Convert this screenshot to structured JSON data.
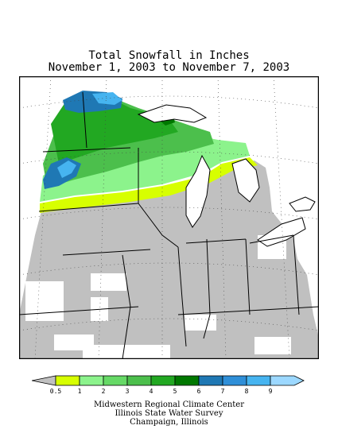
{
  "header": {
    "title": "Total Snowfall in Inches",
    "subtitle": "November 1, 2003 to November 7, 2003"
  },
  "legend": {
    "items": [
      {
        "label": "0.5",
        "color": "#d7ff00"
      },
      {
        "label": "1",
        "color": "#8cf38c"
      },
      {
        "label": "2",
        "color": "#66d966"
      },
      {
        "label": "3",
        "color": "#4cbf4c"
      },
      {
        "label": "4",
        "color": "#22a822"
      },
      {
        "label": "5",
        "color": "#007800"
      },
      {
        "label": "6",
        "color": "#1f78b4"
      },
      {
        "label": "7",
        "color": "#2f8fd8"
      },
      {
        "label": "8",
        "color": "#46b4f0"
      },
      {
        "label": "9",
        "color": "#9cd8ff"
      }
    ],
    "no_data_color": "#c0c0c0",
    "trace_color": "#ffffff"
  },
  "credits": {
    "line1": "Midwestern Regional Climate Center",
    "line2": "Illinois State Water Survey",
    "line3": "Champaign, Illinois"
  }
}
